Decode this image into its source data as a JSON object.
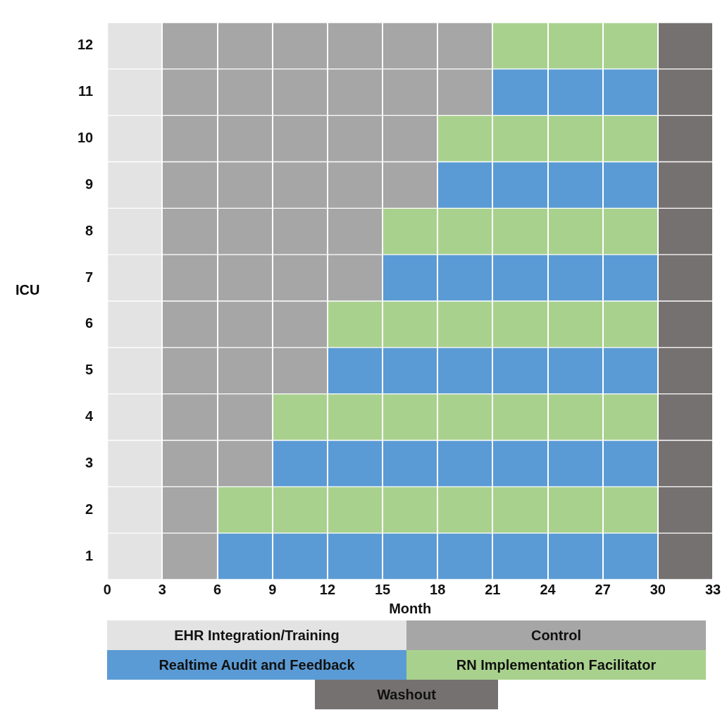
{
  "chart_data": {
    "type": "bar",
    "orientation": "horizontal",
    "stacked": true,
    "xlabel": "Month",
    "ylabel": "ICU",
    "categories": [
      "12",
      "11",
      "10",
      "9",
      "8",
      "7",
      "6",
      "5",
      "4",
      "3",
      "2",
      "1"
    ],
    "xlim": [
      0,
      33
    ],
    "xticks": [
      0,
      3,
      6,
      9,
      12,
      15,
      18,
      21,
      24,
      27,
      30,
      33
    ],
    "grid": "x",
    "legend": "bottom",
    "series": [
      {
        "name": "EHR Integration/Training",
        "color": "#e3e3e3",
        "values": [
          3,
          3,
          3,
          3,
          3,
          3,
          3,
          3,
          3,
          3,
          3,
          3
        ]
      },
      {
        "name": "Control",
        "color": "#a6a6a6",
        "values": [
          18,
          18,
          15,
          15,
          12,
          12,
          9,
          9,
          6,
          6,
          3,
          3
        ]
      },
      {
        "name": "Realtime Audit and Feedback",
        "color": "#5b9bd5",
        "values": [
          null,
          9,
          null,
          12,
          null,
          15,
          null,
          18,
          null,
          21,
          null,
          24
        ]
      },
      {
        "name": "RN Implementation Facilitator",
        "color": "#a9d18e",
        "values": [
          9,
          null,
          12,
          null,
          15,
          null,
          18,
          null,
          21,
          null,
          24,
          null
        ]
      },
      {
        "name": "Washout",
        "color": "#767171",
        "values": [
          3,
          3,
          3,
          3,
          3,
          3,
          3,
          3,
          3,
          3,
          3,
          3
        ]
      }
    ]
  }
}
